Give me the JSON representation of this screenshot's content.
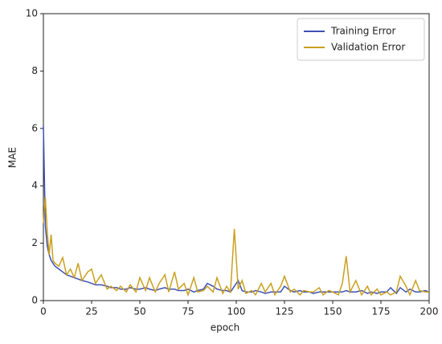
{
  "chart_data": {
    "type": "line",
    "xlabel": "epoch",
    "ylabel": "MAE",
    "x": [
      0,
      1,
      2,
      3,
      4,
      5,
      6,
      8,
      10,
      12,
      14,
      16,
      18,
      20,
      23,
      25,
      27,
      30,
      33,
      35,
      38,
      40,
      43,
      45,
      48,
      50,
      53,
      55,
      58,
      60,
      63,
      65,
      68,
      70,
      73,
      75,
      78,
      80,
      83,
      85,
      88,
      90,
      93,
      95,
      97,
      99,
      101,
      103,
      105,
      108,
      110,
      113,
      115,
      118,
      120,
      123,
      125,
      128,
      130,
      133,
      135,
      138,
      140,
      143,
      145,
      148,
      150,
      153,
      155,
      157,
      159,
      162,
      165,
      168,
      170,
      173,
      175,
      178,
      180,
      183,
      185,
      188,
      190,
      193,
      195,
      198,
      200
    ],
    "series": [
      {
        "name": "Training Error",
        "color": "#3f51b5",
        "values": [
          6.1,
          2.6,
          1.9,
          1.6,
          1.4,
          1.3,
          1.2,
          1.1,
          1.0,
          0.9,
          0.85,
          0.8,
          0.75,
          0.7,
          0.65,
          0.6,
          0.55,
          0.55,
          0.5,
          0.45,
          0.45,
          0.4,
          0.4,
          0.45,
          0.4,
          0.4,
          0.45,
          0.4,
          0.35,
          0.4,
          0.45,
          0.4,
          0.4,
          0.35,
          0.35,
          0.4,
          0.3,
          0.35,
          0.4,
          0.6,
          0.5,
          0.4,
          0.35,
          0.35,
          0.3,
          0.5,
          0.7,
          0.35,
          0.3,
          0.3,
          0.35,
          0.3,
          0.25,
          0.3,
          0.3,
          0.3,
          0.5,
          0.35,
          0.3,
          0.35,
          0.3,
          0.3,
          0.25,
          0.3,
          0.3,
          0.3,
          0.3,
          0.3,
          0.3,
          0.35,
          0.3,
          0.3,
          0.35,
          0.25,
          0.3,
          0.25,
          0.3,
          0.3,
          0.45,
          0.25,
          0.45,
          0.3,
          0.4,
          0.3,
          0.3,
          0.35,
          0.3
        ]
      },
      {
        "name": "Validation Error",
        "color": "#c9a020",
        "values": [
          2.7,
          3.6,
          2.4,
          1.6,
          2.3,
          1.4,
          1.3,
          1.2,
          1.5,
          0.9,
          1.1,
          0.8,
          1.3,
          0.7,
          1.0,
          1.1,
          0.6,
          0.9,
          0.4,
          0.5,
          0.35,
          0.5,
          0.3,
          0.55,
          0.3,
          0.8,
          0.35,
          0.8,
          0.3,
          0.6,
          0.9,
          0.3,
          1.0,
          0.4,
          0.6,
          0.2,
          0.8,
          0.3,
          0.35,
          0.5,
          0.3,
          0.8,
          0.25,
          0.5,
          0.3,
          2.5,
          0.4,
          0.7,
          0.25,
          0.35,
          0.2,
          0.6,
          0.3,
          0.6,
          0.2,
          0.5,
          0.85,
          0.3,
          0.4,
          0.2,
          0.35,
          0.3,
          0.3,
          0.45,
          0.2,
          0.35,
          0.3,
          0.2,
          0.6,
          1.55,
          0.3,
          0.7,
          0.2,
          0.5,
          0.2,
          0.4,
          0.2,
          0.3,
          0.2,
          0.3,
          0.85,
          0.5,
          0.2,
          0.7,
          0.35,
          0.3,
          0.3
        ]
      }
    ],
    "xlim": [
      0,
      200
    ],
    "xticks": [
      0,
      25,
      50,
      75,
      100,
      125,
      150,
      175,
      200
    ],
    "ylim": [
      0,
      10
    ],
    "yticks": [
      0,
      2,
      4,
      6,
      8,
      10
    ],
    "legend": "upper right"
  }
}
